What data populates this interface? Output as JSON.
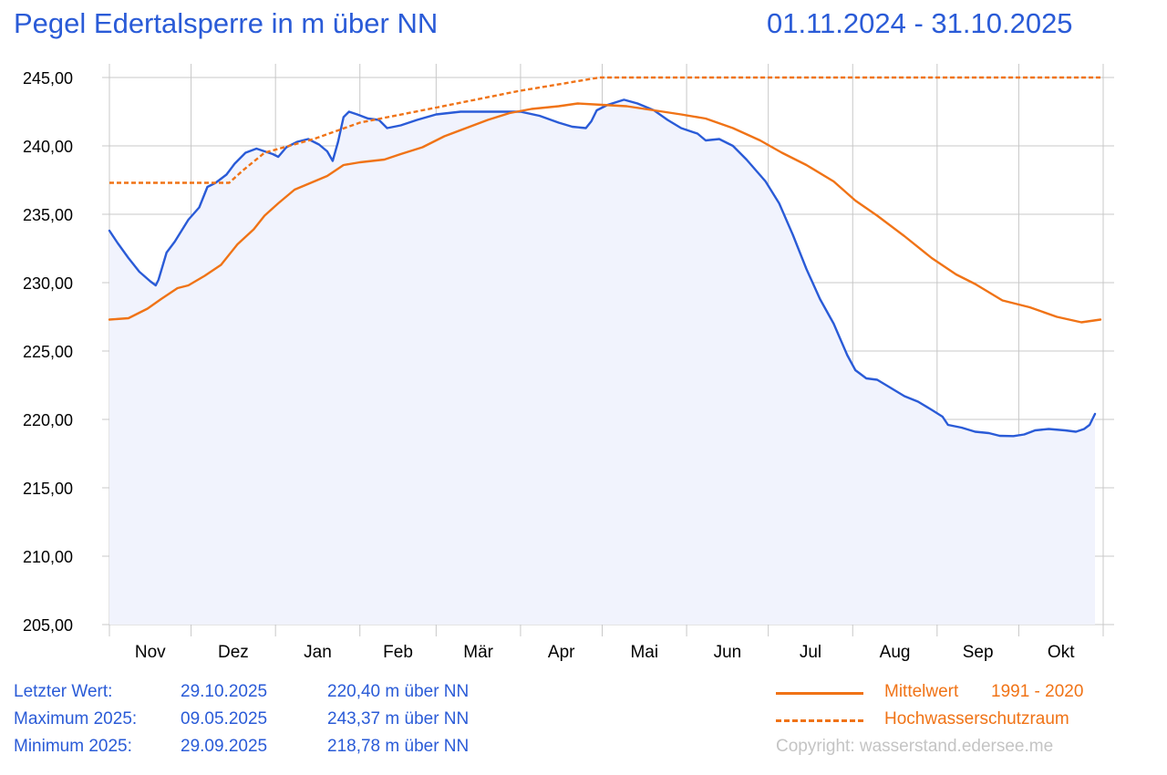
{
  "header": {
    "title": "Pegel Edertalsperre in m über NN",
    "period": "01.11.2024 - 31.10.2025"
  },
  "colors": {
    "level": "#2a5bd7",
    "mean": "#f07316",
    "flood_space": "#f07316",
    "fill": "#f1f3fd",
    "grid": "#c8c8c8"
  },
  "stats": [
    {
      "label": "Letzter Wert:",
      "date": "29.10.2025",
      "value": "220,40 m über NN"
    },
    {
      "label": "Maximum 2025:",
      "date": "09.05.2025",
      "value": "243,37 m über NN"
    },
    {
      "label": "Minimum 2025:",
      "date": "29.09.2025",
      "value": "218,78 m über NN"
    }
  ],
  "legend": {
    "mean_label": "Mittelwert",
    "mean_period": "1991 - 2020",
    "flood_label": "Hochwasserschutzraum",
    "position": "bottom-right"
  },
  "copyright": "Copyright: wasserstand.edersee.me",
  "chart_data": {
    "type": "line",
    "title": "Pegel Edertalsperre in m über NN",
    "subtitle": "01.11.2024 - 31.10.2025",
    "xlabel": "",
    "ylabel": "",
    "x_range": [
      "2024-11-01",
      "2025-10-31"
    ],
    "ylim": [
      205,
      245
    ],
    "grid": true,
    "month_ticks": [
      {
        "label": "Nov",
        "start": "2024-11-01"
      },
      {
        "label": "Dez",
        "start": "2024-12-01"
      },
      {
        "label": "Jan",
        "start": "2025-01-01"
      },
      {
        "label": "Feb",
        "start": "2025-02-01"
      },
      {
        "label": "Mär",
        "start": "2025-03-01"
      },
      {
        "label": "Apr",
        "start": "2025-04-01"
      },
      {
        "label": "Mai",
        "start": "2025-05-01"
      },
      {
        "label": "Jun",
        "start": "2025-06-01"
      },
      {
        "label": "Jul",
        "start": "2025-07-01"
      },
      {
        "label": "Aug",
        "start": "2025-08-01"
      },
      {
        "label": "Sep",
        "start": "2025-09-01"
      },
      {
        "label": "Okt",
        "start": "2025-10-01"
      }
    ],
    "y_ticks": [
      {
        "value": 205,
        "label": "205,00"
      },
      {
        "value": 210,
        "label": "210,00"
      },
      {
        "value": 215,
        "label": "215,00"
      },
      {
        "value": 220,
        "label": "220,00"
      },
      {
        "value": 225,
        "label": "225,00"
      },
      {
        "value": 230,
        "label": "230,00"
      },
      {
        "value": 235,
        "label": "235,00"
      },
      {
        "value": 240,
        "label": "240,00"
      },
      {
        "value": 245,
        "label": "245,00"
      }
    ],
    "series": [
      {
        "name": "Pegel",
        "style": "solid",
        "filled": true,
        "points": [
          [
            "2024-11-01",
            233.8
          ],
          [
            "2024-11-04",
            232.9
          ],
          [
            "2024-11-08",
            231.8
          ],
          [
            "2024-11-12",
            230.8
          ],
          [
            "2024-11-16",
            230.1
          ],
          [
            "2024-11-18",
            229.8
          ],
          [
            "2024-11-19",
            230.2
          ],
          [
            "2024-11-22",
            232.2
          ],
          [
            "2024-11-25",
            233.0
          ],
          [
            "2024-11-30",
            234.6
          ],
          [
            "2024-12-04",
            235.5
          ],
          [
            "2024-12-07",
            237.0
          ],
          [
            "2024-12-10",
            237.3
          ],
          [
            "2024-12-14",
            237.9
          ],
          [
            "2024-12-17",
            238.7
          ],
          [
            "2024-12-21",
            239.5
          ],
          [
            "2024-12-25",
            239.8
          ],
          [
            "2024-12-28",
            239.6
          ],
          [
            "2024-12-31",
            239.4
          ],
          [
            "2025-01-02",
            239.2
          ],
          [
            "2025-01-05",
            239.9
          ],
          [
            "2025-01-09",
            240.3
          ],
          [
            "2025-01-13",
            240.5
          ],
          [
            "2025-01-17",
            240.1
          ],
          [
            "2025-01-20",
            239.6
          ],
          [
            "2025-01-22",
            238.9
          ],
          [
            "2025-01-24",
            240.3
          ],
          [
            "2025-01-26",
            242.1
          ],
          [
            "2025-01-28",
            242.5
          ],
          [
            "2025-01-31",
            242.3
          ],
          [
            "2025-02-04",
            242.0
          ],
          [
            "2025-02-08",
            241.9
          ],
          [
            "2025-02-11",
            241.3
          ],
          [
            "2025-02-16",
            241.5
          ],
          [
            "2025-02-22",
            241.9
          ],
          [
            "2025-03-01",
            242.3
          ],
          [
            "2025-03-10",
            242.5
          ],
          [
            "2025-03-20",
            242.5
          ],
          [
            "2025-04-01",
            242.5
          ],
          [
            "2025-04-08",
            242.2
          ],
          [
            "2025-04-15",
            241.7
          ],
          [
            "2025-04-20",
            241.4
          ],
          [
            "2025-04-25",
            241.3
          ],
          [
            "2025-04-27",
            241.8
          ],
          [
            "2025-04-29",
            242.6
          ],
          [
            "2025-05-03",
            243.0
          ],
          [
            "2025-05-09",
            243.37
          ],
          [
            "2025-05-14",
            243.1
          ],
          [
            "2025-05-20",
            242.6
          ],
          [
            "2025-05-25",
            241.9
          ],
          [
            "2025-05-30",
            241.3
          ],
          [
            "2025-06-05",
            240.9
          ],
          [
            "2025-06-08",
            240.4
          ],
          [
            "2025-06-13",
            240.5
          ],
          [
            "2025-06-18",
            240.0
          ],
          [
            "2025-06-23",
            239.0
          ],
          [
            "2025-06-30",
            237.4
          ],
          [
            "2025-07-05",
            235.8
          ],
          [
            "2025-07-10",
            233.5
          ],
          [
            "2025-07-15",
            231.0
          ],
          [
            "2025-07-20",
            228.8
          ],
          [
            "2025-07-25",
            227.0
          ],
          [
            "2025-07-30",
            224.7
          ],
          [
            "2025-08-02",
            223.6
          ],
          [
            "2025-08-06",
            223.0
          ],
          [
            "2025-08-10",
            222.9
          ],
          [
            "2025-08-15",
            222.3
          ],
          [
            "2025-08-20",
            221.7
          ],
          [
            "2025-08-25",
            221.3
          ],
          [
            "2025-08-30",
            220.7
          ],
          [
            "2025-09-03",
            220.2
          ],
          [
            "2025-09-05",
            219.6
          ],
          [
            "2025-09-10",
            219.4
          ],
          [
            "2025-09-15",
            219.1
          ],
          [
            "2025-09-20",
            219.0
          ],
          [
            "2025-09-24",
            218.8
          ],
          [
            "2025-09-29",
            218.78
          ],
          [
            "2025-10-03",
            218.9
          ],
          [
            "2025-10-07",
            219.2
          ],
          [
            "2025-10-12",
            219.3
          ],
          [
            "2025-10-18",
            219.2
          ],
          [
            "2025-10-22",
            219.1
          ],
          [
            "2025-10-25",
            219.3
          ],
          [
            "2025-10-27",
            219.6
          ],
          [
            "2025-10-29",
            220.4
          ]
        ]
      },
      {
        "name": "Mittelwert 1991 - 2020",
        "style": "solid",
        "points": [
          [
            "2024-11-01",
            227.3
          ],
          [
            "2024-11-08",
            227.4
          ],
          [
            "2024-11-15",
            228.1
          ],
          [
            "2024-11-20",
            228.8
          ],
          [
            "2024-11-26",
            229.6
          ],
          [
            "2024-11-30",
            229.8
          ],
          [
            "2024-12-06",
            230.5
          ],
          [
            "2024-12-12",
            231.3
          ],
          [
            "2024-12-18",
            232.8
          ],
          [
            "2024-12-24",
            233.9
          ],
          [
            "2024-12-28",
            234.9
          ],
          [
            "2025-01-02",
            235.8
          ],
          [
            "2025-01-08",
            236.8
          ],
          [
            "2025-01-14",
            237.3
          ],
          [
            "2025-01-20",
            237.8
          ],
          [
            "2025-01-26",
            238.6
          ],
          [
            "2025-02-01",
            238.8
          ],
          [
            "2025-02-10",
            239.0
          ],
          [
            "2025-02-16",
            239.4
          ],
          [
            "2025-02-24",
            239.9
          ],
          [
            "2025-03-04",
            240.7
          ],
          [
            "2025-03-12",
            241.3
          ],
          [
            "2025-03-20",
            241.9
          ],
          [
            "2025-03-28",
            242.4
          ],
          [
            "2025-04-05",
            242.7
          ],
          [
            "2025-04-15",
            242.9
          ],
          [
            "2025-04-22",
            243.1
          ],
          [
            "2025-05-01",
            243.0
          ],
          [
            "2025-05-10",
            242.9
          ],
          [
            "2025-05-20",
            242.6
          ],
          [
            "2025-05-30",
            242.3
          ],
          [
            "2025-06-08",
            242.0
          ],
          [
            "2025-06-18",
            241.3
          ],
          [
            "2025-06-28",
            240.4
          ],
          [
            "2025-07-06",
            239.5
          ],
          [
            "2025-07-15",
            238.6
          ],
          [
            "2025-07-25",
            237.4
          ],
          [
            "2025-08-02",
            236.0
          ],
          [
            "2025-08-10",
            234.9
          ],
          [
            "2025-08-20",
            233.4
          ],
          [
            "2025-08-30",
            231.8
          ],
          [
            "2025-09-08",
            230.6
          ],
          [
            "2025-09-15",
            229.9
          ],
          [
            "2025-09-25",
            228.7
          ],
          [
            "2025-10-05",
            228.2
          ],
          [
            "2025-10-15",
            227.5
          ],
          [
            "2025-10-24",
            227.1
          ],
          [
            "2025-10-31",
            227.3
          ]
        ]
      },
      {
        "name": "Hochwasserschutzraum",
        "style": "dashed",
        "points": [
          [
            "2024-11-01",
            237.3
          ],
          [
            "2024-12-15",
            237.3
          ],
          [
            "2024-12-20",
            238.2
          ],
          [
            "2024-12-28",
            239.5
          ],
          [
            "2025-01-15",
            240.5
          ],
          [
            "2025-02-01",
            241.7
          ],
          [
            "2025-03-01",
            242.8
          ],
          [
            "2025-03-31",
            244.0
          ],
          [
            "2025-04-30",
            245.0
          ],
          [
            "2025-10-31",
            245.0
          ]
        ]
      }
    ]
  }
}
